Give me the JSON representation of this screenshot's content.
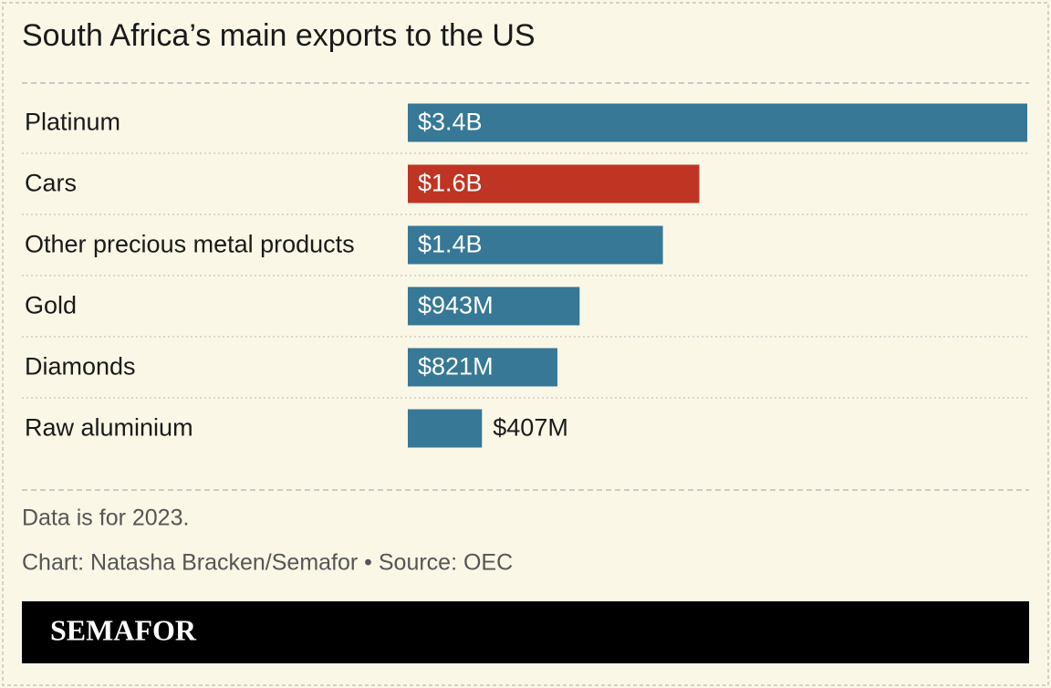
{
  "chart_data": {
    "type": "bar",
    "orientation": "horizontal",
    "title": "South Africa’s main exports to the US",
    "categories": [
      "Platinum",
      "Cars",
      "Other precious metal products",
      "Gold",
      "Diamonds",
      "Raw aluminium"
    ],
    "values": [
      3400000000,
      1600000000,
      1400000000,
      943000000,
      821000000,
      407000000
    ],
    "value_labels": [
      "$3.4B",
      "$1.6B",
      "$1.4B",
      "$943M",
      "$821M",
      "$407M"
    ],
    "colors": [
      "#367896",
      "#c03423",
      "#367896",
      "#367896",
      "#367896",
      "#367896"
    ],
    "notes": [
      "Data is for 2023.",
      "Chart: Natasha Bracken/Semafor • Source: OEC"
    ],
    "brand": "SEMAFOR"
  }
}
